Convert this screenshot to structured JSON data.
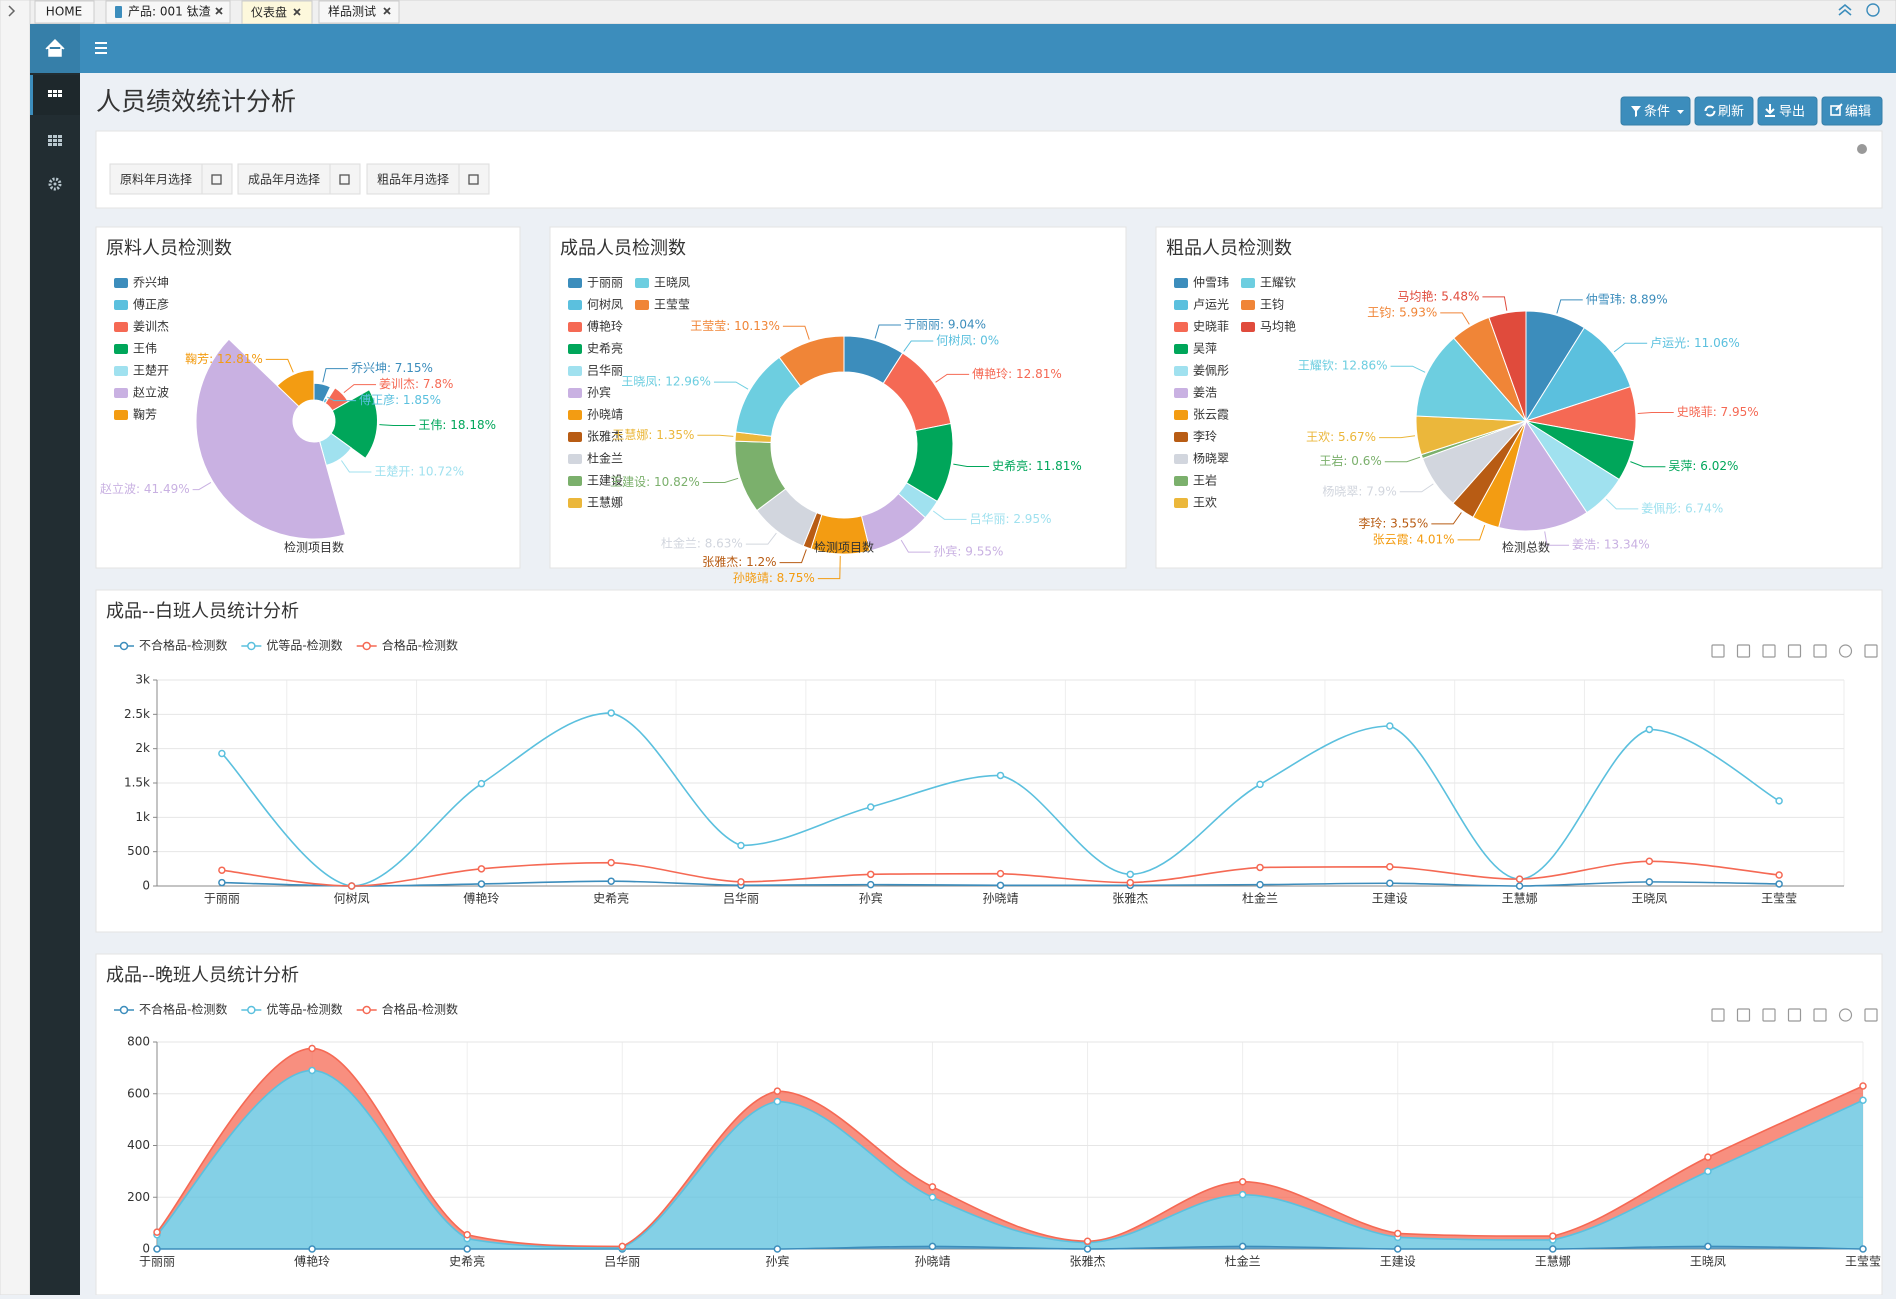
{
  "tabs": [
    "HOME",
    "产品: 001 钛渣",
    "仪表盘",
    "样品测试"
  ],
  "page_title": "人员绩效统计分析",
  "buttons": [
    "条件",
    "刷新",
    "导出",
    "编辑"
  ],
  "filters": [
    "原料年月选择",
    "成品年月选择",
    "粗品年月选择"
  ],
  "chart_data": [
    {
      "type": "pie",
      "rose": true,
      "title": "原料人员检测数",
      "center_label": "检测项目数",
      "categories": [
        "乔兴坤",
        "傅正彦",
        "姜训杰",
        "王伟",
        "王楚开",
        "赵立波",
        "鞠芳"
      ],
      "values": [
        7.15,
        1.85,
        7.8,
        18.18,
        10.72,
        41.49,
        12.81
      ],
      "value_labels": [
        "乔兴坤: 7.15%",
        "傅正彦: 1.85%",
        "姜训杰: 7.8%",
        "王伟: 18.18%",
        "王楚开: 10.72%",
        "赵立波: 41.49%",
        "鞠芳: 12.81%"
      ],
      "colors": [
        "#3c8dbc",
        "#5bc0de",
        "#f56954",
        "#00a65a",
        "#a0e1ef",
        "#c9b1e2",
        "#f39c12"
      ]
    },
    {
      "type": "pie",
      "donut": true,
      "title": "成品人员检测数",
      "center_label": "检测项目数",
      "categories": [
        "于丽丽",
        "何树凤",
        "傅艳玲",
        "史希亮",
        "吕华丽",
        "孙宾",
        "孙晓靖",
        "张雅杰",
        "杜金兰",
        "王建设",
        "王慧娜",
        "王晓凤",
        "王莹莹"
      ],
      "values": [
        9.04,
        0,
        12.81,
        11.81,
        2.95,
        9.55,
        8.75,
        1.2,
        8.63,
        10.82,
        1.35,
        12.96,
        10.13
      ],
      "value_labels": [
        "于丽丽: 9.04%",
        "何树凤: 0%",
        "傅艳玲: 12.81%",
        "史希亮: 11.81%",
        "吕华丽: 2.95%",
        "孙宾: 9.55%",
        "孙晓靖: 8.75%",
        "张雅杰: 1.2%",
        "杜金兰: 8.63%",
        "王建设: 10.82%",
        "王慧娜: 1.35%",
        "王晓凤: 12.96%",
        "王莹莹: 10.13%"
      ],
      "colors": [
        "#3c8dbc",
        "#5bc0de",
        "#f56954",
        "#00a65a",
        "#a0e1ef",
        "#c9b1e2",
        "#f39c12",
        "#b85c14",
        "#d2d6de",
        "#7bb06c",
        "#ebb73b",
        "#6dcee0",
        "#f08537"
      ]
    },
    {
      "type": "pie",
      "title": "粗品人员检测数",
      "center_label": "检测总数",
      "categories": [
        "仲雪玮",
        "卢运光",
        "史晓菲",
        "吴萍",
        "姜佩彤",
        "姜浩",
        "张云霞",
        "李玲",
        "杨晓翠",
        "王岩",
        "王欢",
        "王耀钦",
        "王钧",
        "马均艳"
      ],
      "values": [
        8.89,
        11.06,
        7.95,
        6.02,
        6.74,
        13.34,
        4.01,
        3.55,
        7.9,
        0.6,
        5.67,
        12.86,
        5.93,
        5.48
      ],
      "value_labels": [
        "仲雪玮: 8.89%",
        "卢运光: 11.06%",
        "史晓菲: 7.95%",
        "吴萍: 6.02%",
        "姜佩彤: 6.74%",
        "姜浩: 13.34%",
        "张云霞: 4.01%",
        "李玲: 3.55%",
        "杨晓翠: 7.9%",
        "王岩: 0.6%",
        "王欢: 5.67%",
        "王耀钦: 12.86%",
        "王钧: 5.93%",
        "马均艳: 5.48%"
      ],
      "colors": [
        "#3c8dbc",
        "#5bc0de",
        "#f56954",
        "#00a65a",
        "#a0e1ef",
        "#c9b1e2",
        "#f39c12",
        "#b85c14",
        "#d2d6de",
        "#7bb06c",
        "#ebb73b",
        "#6dcee0",
        "#f08537",
        "#e04b3c"
      ]
    },
    {
      "type": "line",
      "smooth": true,
      "grid": true,
      "title": "成品--白班人员统计分析",
      "categories": [
        "于丽丽",
        "何树凤",
        "傅艳玲",
        "史希亮",
        "吕华丽",
        "孙宾",
        "孙晓靖",
        "张雅杰",
        "杜金兰",
        "王建设",
        "王慧娜",
        "王晓凤",
        "王莹莹"
      ],
      "series": [
        {
          "name": "不合格品-检测数",
          "color": "#3c8dbc",
          "values": [
            50,
            0,
            30,
            70,
            10,
            20,
            10,
            10,
            20,
            40,
            0,
            60,
            30
          ]
        },
        {
          "name": "优等品-检测数",
          "color": "#5bc0de",
          "values": [
            1930,
            0,
            1490,
            2520,
            590,
            1150,
            1610,
            170,
            1480,
            2330,
            100,
            2280,
            1240
          ]
        },
        {
          "name": "合格品-检测数",
          "color": "#f56954",
          "values": [
            230,
            0,
            250,
            340,
            60,
            170,
            180,
            50,
            270,
            280,
            100,
            360,
            160
          ]
        }
      ],
      "ylim": [
        0,
        3000
      ],
      "yticks": [
        0,
        500,
        {
          "value": 1000,
          "label": "1k"
        },
        {
          "value": 1500,
          "label": "1.5k"
        },
        {
          "value": 2000,
          "label": "2k"
        },
        {
          "value": 2500,
          "label": "2.5k"
        },
        {
          "value": 3000,
          "label": "3k"
        }
      ]
    },
    {
      "type": "line",
      "smooth": true,
      "stacked": true,
      "area": true,
      "grid": true,
      "title": "成品--晚班人员统计分析",
      "categories": [
        "于丽丽",
        "傅艳玲",
        "史希亮",
        "吕华丽",
        "孙宾",
        "孙晓靖",
        "张雅杰",
        "杜金兰",
        "王建设",
        "王慧娜",
        "王晓凤",
        "王莹莹"
      ],
      "series": [
        {
          "name": "不合格品-检测数",
          "color": "#3c8dbc",
          "values": [
            0,
            0,
            0,
            0,
            0,
            10,
            0,
            10,
            0,
            0,
            10,
            0
          ]
        },
        {
          "name": "优等品-检测数",
          "color": "#5bc0de",
          "values": [
            55,
            690,
            40,
            5,
            570,
            190,
            25,
            200,
            45,
            35,
            290,
            575
          ]
        },
        {
          "name": "合格品-检测数",
          "color": "#f56954",
          "values": [
            10,
            85,
            15,
            5,
            40,
            40,
            5,
            50,
            15,
            15,
            55,
            55
          ]
        }
      ],
      "ylim": [
        0,
        800
      ],
      "yticks": [
        0,
        200,
        400,
        600,
        800
      ]
    }
  ]
}
